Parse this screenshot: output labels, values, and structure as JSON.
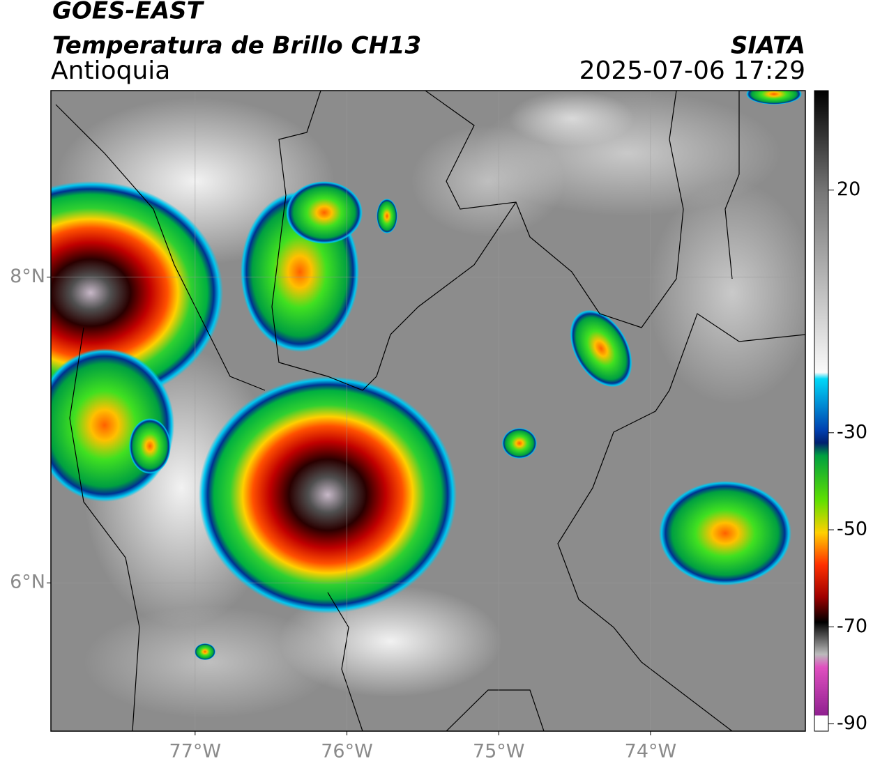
{
  "header": {
    "title": "GOES-EAST",
    "product": "Temperatura de Brillo CH13",
    "region": "Antioquia",
    "source": "SIATA",
    "datetime": "2025-07-06 17:29"
  },
  "map": {
    "lonlim": [
      -77.95,
      -72.98
    ],
    "latlim": [
      5.03,
      9.22
    ],
    "lonticks": [
      {
        "value": -77,
        "label": "77°W"
      },
      {
        "value": -76,
        "label": "76°W"
      },
      {
        "value": -75,
        "label": "75°W"
      },
      {
        "value": -74,
        "label": "74°W"
      }
    ],
    "latticks": [
      {
        "value": 8,
        "label": "8°N"
      },
      {
        "value": 6,
        "label": "6°N"
      }
    ]
  },
  "colorbar": {
    "lim": [
      -91.5,
      40.5
    ],
    "ticks": [
      20,
      -30,
      -50,
      -70,
      -90
    ]
  }
}
